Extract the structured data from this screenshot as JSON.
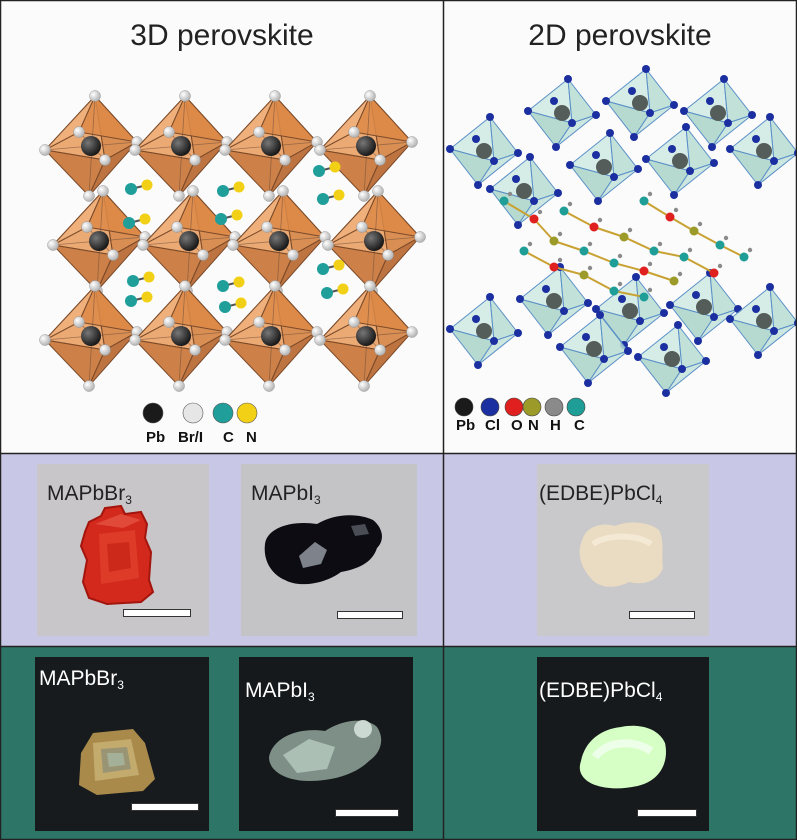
{
  "panels": {
    "top_left": {
      "title": "3D perovskite"
    },
    "top_right": {
      "title": "2D perovskite"
    }
  },
  "legend_3d": {
    "items": [
      {
        "label": "Pb",
        "color": "#1a1a1a"
      },
      {
        "label": "Br/I",
        "color": "#e6e6e6"
      },
      {
        "label": "C",
        "color": "#1f9e9a"
      },
      {
        "label": "N",
        "color": "#f2d016"
      }
    ]
  },
  "legend_2d": {
    "items": [
      {
        "label": "Pb",
        "color": "#1a1a1a"
      },
      {
        "label": "Cl",
        "color": "#1c2fa0"
      },
      {
        "label": "O",
        "color": "#e0201e"
      },
      {
        "label": "N",
        "color": "#9c9a28"
      },
      {
        "label": "H",
        "color": "#8a8a8a"
      },
      {
        "label": "C",
        "color": "#1e9e96"
      }
    ]
  },
  "ambient_row": {
    "samples": [
      {
        "formula": "MAPbBr",
        "subscript": "3",
        "crystal_color": "#d2291c"
      },
      {
        "formula": "MAPbI",
        "subscript": "3",
        "crystal_color": "#0c0c12"
      },
      {
        "formula": "(EDBE)PbCl",
        "subscript": "4",
        "crystal_color": "#eadcc2"
      }
    ]
  },
  "uv_row": {
    "samples": [
      {
        "formula": "MAPbBr",
        "subscript": "3",
        "crystal_color": "#a98a4a"
      },
      {
        "formula": "MAPbI",
        "subscript": "3",
        "crystal_color": "#7d8f86"
      },
      {
        "formula": "(EDBE)PbCl",
        "subscript": "4",
        "crystal_color": "#d6ffc6"
      }
    ]
  }
}
